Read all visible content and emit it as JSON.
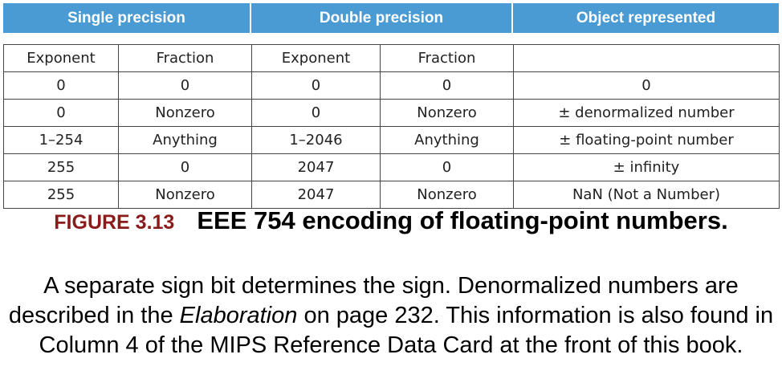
{
  "table": {
    "headers": [
      "Single precision",
      "Double precision",
      "Object represented"
    ],
    "subheaders": [
      "Exponent",
      "Fraction",
      "Exponent",
      "Fraction",
      ""
    ],
    "rows": [
      [
        "0",
        "0",
        "0",
        "0",
        "0"
      ],
      [
        "0",
        "Nonzero",
        "0",
        "Nonzero",
        "± denormalized number"
      ],
      [
        "1–254",
        "Anything",
        "1–2046",
        "Anything",
        "± floating-point number"
      ],
      [
        "255",
        "0",
        "2047",
        "0",
        "± infinity"
      ],
      [
        "255",
        "Nonzero",
        "2047",
        "Nonzero",
        "NaN (Not a Number)"
      ]
    ],
    "header_color": "#4a9bd4"
  },
  "caption": {
    "figure_number": "FIGURE 3.13",
    "title": "EEE 754 encoding of floating-point numbers.",
    "body_part1": "A separate sign bit determines the sign. Denormalized numbers are described in the ",
    "body_italic": "Elaboration",
    "body_part2": " on page 232. This information is also found in Column 4 of the MIPS Reference Data Card at the front of this book."
  }
}
